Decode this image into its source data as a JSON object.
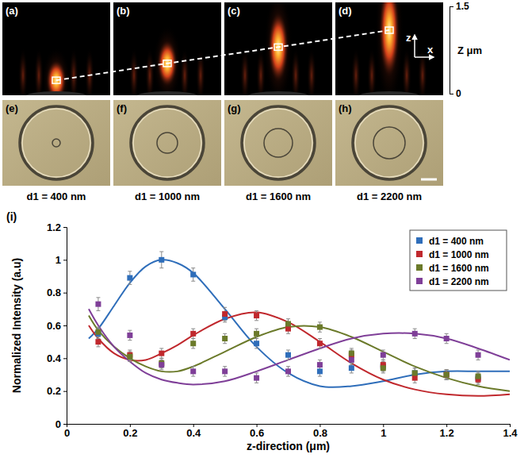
{
  "simulation": {
    "panel_labels": [
      "(a)",
      "(b)",
      "(c)",
      "(d)"
    ],
    "focus_z": [
      0.23,
      0.52,
      0.8,
      1.09
    ],
    "axis_title": "Z μm",
    "zlim": [
      0,
      1.5
    ],
    "zticks": [
      0,
      1.5
    ],
    "direction_labels": [
      "z",
      "x"
    ]
  },
  "micrographs": {
    "panel_labels": [
      "(e)",
      "(f)",
      "(g)",
      "(h)"
    ],
    "captions": [
      "d1 = 400 nm",
      "d1 = 1000 nm",
      "d1 = 1600 nm",
      "d1 = 2200 nm"
    ]
  },
  "chart_data": {
    "type": "scatter",
    "panel_label": "(i)",
    "x_label": "z-direction (μm)",
    "y_label": "Normalized Intensity (a.u)",
    "xlim": [
      0,
      1.4
    ],
    "xticks": [
      0,
      0.2,
      0.4,
      0.6,
      0.8,
      1,
      1.2,
      1.4
    ],
    "ylim": [
      0,
      1.2
    ],
    "yticks": [
      0,
      0.2,
      0.4,
      0.6,
      0.8,
      1,
      1.2
    ],
    "legend": "upper right",
    "marker": "square",
    "grid": false,
    "x": [
      0.1,
      0.2,
      0.3,
      0.4,
      0.5,
      0.6,
      0.7,
      0.8,
      0.9,
      1.0,
      1.1,
      1.2,
      1.3
    ],
    "series": [
      {
        "name": "d1 = 400 nm",
        "color": "#2f6eba",
        "values": [
          0.55,
          0.89,
          1.0,
          0.91,
          0.65,
          0.49,
          0.42,
          0.32,
          0.34,
          0.35,
          0.31,
          0.3,
          0.28
        ],
        "errors": [
          0.03,
          0.04,
          0.05,
          0.04,
          0.03,
          0.03,
          0.03,
          0.03,
          0.03,
          0.03,
          0.03,
          0.03,
          0.03
        ],
        "fit_x": [
          0.07,
          0.1,
          0.15,
          0.2,
          0.25,
          0.3,
          0.35,
          0.4,
          0.5,
          0.6,
          0.7,
          0.8,
          0.9,
          1.0,
          1.1,
          1.2,
          1.3,
          1.4
        ],
        "fit_values": [
          0.52,
          0.58,
          0.72,
          0.86,
          0.96,
          1.0,
          0.98,
          0.92,
          0.7,
          0.47,
          0.31,
          0.23,
          0.23,
          0.26,
          0.3,
          0.32,
          0.32,
          0.32
        ]
      },
      {
        "name": "d1 = 1000 nm",
        "color": "#c0282d",
        "values": [
          0.5,
          0.42,
          0.43,
          0.55,
          0.67,
          0.66,
          0.58,
          0.49,
          0.42,
          0.36,
          0.28,
          0.3,
          0.27
        ],
        "errors": [
          0.03,
          0.03,
          0.03,
          0.03,
          0.04,
          0.03,
          0.03,
          0.03,
          0.03,
          0.03,
          0.03,
          0.03,
          0.03
        ],
        "fit_x": [
          0.07,
          0.1,
          0.15,
          0.2,
          0.25,
          0.3,
          0.35,
          0.4,
          0.5,
          0.6,
          0.7,
          0.8,
          0.9,
          1.0,
          1.1,
          1.2,
          1.3,
          1.4
        ],
        "fit_values": [
          0.6,
          0.52,
          0.43,
          0.39,
          0.39,
          0.43,
          0.48,
          0.54,
          0.64,
          0.68,
          0.62,
          0.5,
          0.37,
          0.27,
          0.21,
          0.18,
          0.17,
          0.18
        ]
      },
      {
        "name": "d1 = 1600 nm",
        "color": "#6b7a2a",
        "values": [
          0.56,
          0.41,
          0.37,
          0.49,
          0.52,
          0.55,
          0.61,
          0.59,
          0.43,
          0.34,
          0.31,
          0.3,
          0.29
        ],
        "errors": [
          0.03,
          0.03,
          0.03,
          0.03,
          0.03,
          0.03,
          0.03,
          0.03,
          0.03,
          0.03,
          0.03,
          0.03,
          0.03
        ],
        "fit_x": [
          0.07,
          0.1,
          0.15,
          0.2,
          0.25,
          0.3,
          0.35,
          0.4,
          0.5,
          0.6,
          0.7,
          0.8,
          0.9,
          1.0,
          1.1,
          1.2,
          1.3,
          1.4
        ],
        "fit_values": [
          0.66,
          0.57,
          0.47,
          0.4,
          0.35,
          0.32,
          0.32,
          0.35,
          0.44,
          0.53,
          0.59,
          0.59,
          0.53,
          0.44,
          0.35,
          0.28,
          0.23,
          0.2
        ]
      },
      {
        "name": "d1 = 2200 nm",
        "color": "#7f3f98",
        "values": [
          0.73,
          0.54,
          0.36,
          0.32,
          0.32,
          0.28,
          0.32,
          0.36,
          0.39,
          0.42,
          0.55,
          0.52,
          0.42
        ],
        "errors": [
          0.04,
          0.03,
          0.03,
          0.03,
          0.03,
          0.03,
          0.03,
          0.03,
          0.03,
          0.03,
          0.03,
          0.03,
          0.03
        ],
        "fit_x": [
          0.07,
          0.1,
          0.15,
          0.2,
          0.25,
          0.3,
          0.35,
          0.4,
          0.5,
          0.6,
          0.7,
          0.8,
          0.9,
          1.0,
          1.1,
          1.2,
          1.3,
          1.4
        ],
        "fit_values": [
          0.7,
          0.6,
          0.47,
          0.38,
          0.31,
          0.27,
          0.25,
          0.24,
          0.26,
          0.32,
          0.39,
          0.46,
          0.52,
          0.55,
          0.55,
          0.52,
          0.46,
          0.39
        ]
      }
    ]
  }
}
